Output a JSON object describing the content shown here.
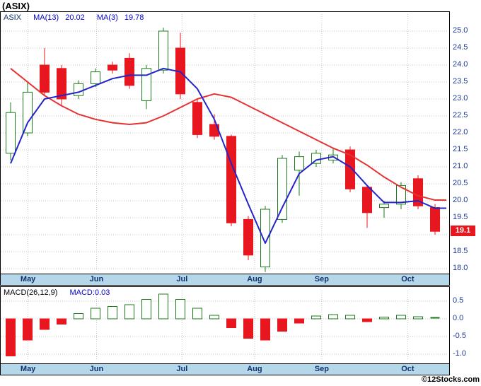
{
  "title": "(ASIX)",
  "legend": {
    "symbol": "ASIX",
    "ma13_label": "MA(13)",
    "ma13_value": "20.02",
    "ma3_label": "MA(3)",
    "ma3_value": "19.78"
  },
  "macd_header": {
    "label": "MACD(26,12,9)",
    "value_label": "MACD:0.03"
  },
  "copyright": "©12Stocks.com",
  "colors": {
    "up_green": "#1b7a1b",
    "down_red": "#e8161e",
    "ma13_red": "#e83232",
    "ma3_blue": "#2424cc",
    "band_blue": "#b5d7ea",
    "axis_text": "#1f3a93",
    "legend_blue": "#0000cd",
    "last_price_bg": "#e8161e"
  },
  "chart_data": [
    {
      "type": "candlestick",
      "title": "ASIX weekly price with MA(13) and MA(3)",
      "x_axis": {
        "months": [
          "May",
          "Jun",
          "Jul",
          "Aug",
          "Sep",
          "Oct"
        ],
        "month_frac": [
          0.061,
          0.214,
          0.405,
          0.567,
          0.717,
          0.909
        ]
      },
      "y_axis": {
        "ticks": [
          25.0,
          24.5,
          24.0,
          23.5,
          23.0,
          22.5,
          22.0,
          21.5,
          21.0,
          20.5,
          20.0,
          19.5,
          18.5,
          18.0
        ],
        "range": [
          17.8,
          25.35
        ],
        "last_price": 19.1,
        "last_price_label": "19.1"
      },
      "ohlc_legend": "arrays are [open, high, low, close], weekly candles May-Oct",
      "ohlc": [
        [
          21.4,
          22.9,
          21.2,
          22.6
        ],
        [
          22.0,
          23.5,
          21.9,
          23.2
        ],
        [
          24.0,
          24.5,
          23.1,
          23.2
        ],
        [
          23.9,
          24.0,
          22.8,
          23.0
        ],
        [
          23.1,
          23.55,
          23.0,
          23.45
        ],
        [
          23.45,
          23.9,
          23.35,
          23.8
        ],
        [
          24.0,
          24.1,
          23.75,
          23.85
        ],
        [
          24.2,
          24.35,
          23.3,
          23.4
        ],
        [
          22.95,
          24.0,
          22.7,
          23.9
        ],
        [
          23.85,
          25.1,
          23.75,
          25.0
        ],
        [
          24.5,
          24.95,
          23.0,
          23.15
        ],
        [
          22.9,
          23.0,
          21.85,
          21.95
        ],
        [
          22.25,
          22.55,
          21.8,
          21.9
        ],
        [
          21.9,
          21.95,
          19.25,
          19.35
        ],
        [
          19.45,
          19.55,
          18.25,
          18.4
        ],
        [
          18.05,
          19.85,
          17.9,
          19.75
        ],
        [
          19.45,
          21.35,
          19.35,
          21.25
        ],
        [
          20.9,
          21.45,
          20.15,
          21.3
        ],
        [
          21.1,
          21.5,
          21.0,
          21.4
        ],
        [
          21.2,
          21.55,
          21.1,
          21.35
        ],
        [
          21.5,
          21.6,
          20.25,
          20.35
        ],
        [
          20.4,
          20.45,
          19.2,
          19.65
        ],
        [
          19.8,
          20.0,
          19.5,
          19.9
        ],
        [
          19.9,
          20.55,
          19.75,
          20.45
        ],
        [
          20.65,
          20.75,
          19.75,
          19.85
        ],
        [
          19.8,
          19.9,
          19.0,
          19.1
        ]
      ],
      "series": [
        {
          "key": "ma13",
          "name": "MA(13)",
          "color": "#e83232",
          "values": [
            23.9,
            23.5,
            23.1,
            22.8,
            22.55,
            22.4,
            22.3,
            22.25,
            22.3,
            22.5,
            22.75,
            23.0,
            23.15,
            23.05,
            22.8,
            22.55,
            22.3,
            22.05,
            21.8,
            21.55,
            21.35,
            21.05,
            20.7,
            20.4,
            20.15,
            20.02
          ]
        },
        {
          "key": "ma3",
          "name": "MA(3)",
          "color": "#2424cc",
          "values": [
            21.1,
            22.3,
            23.0,
            23.1,
            23.2,
            23.4,
            23.6,
            23.7,
            23.7,
            23.9,
            23.8,
            23.3,
            22.4,
            21.1,
            19.9,
            18.75,
            19.8,
            20.8,
            21.2,
            21.3,
            21.0,
            20.45,
            19.95,
            19.95,
            20.0,
            19.78
          ]
        }
      ],
      "grid": true,
      "legend_position": "top-left"
    },
    {
      "type": "bar",
      "title": "MACD(26,12,9) histogram",
      "y_axis": {
        "ticks": [
          0.5,
          0.0,
          -0.5,
          -1.0
        ],
        "range": [
          -1.25,
          0.85
        ],
        "last_value": 0.03
      },
      "values": [
        -1.05,
        -0.6,
        -0.3,
        -0.15,
        0.15,
        0.3,
        0.35,
        0.4,
        0.55,
        0.7,
        0.55,
        0.3,
        0.1,
        -0.25,
        -0.55,
        -0.6,
        -0.35,
        -0.12,
        0.08,
        0.12,
        0.1,
        -0.08,
        0.05,
        0.1,
        0.06,
        0.03
      ],
      "grid": true
    }
  ]
}
